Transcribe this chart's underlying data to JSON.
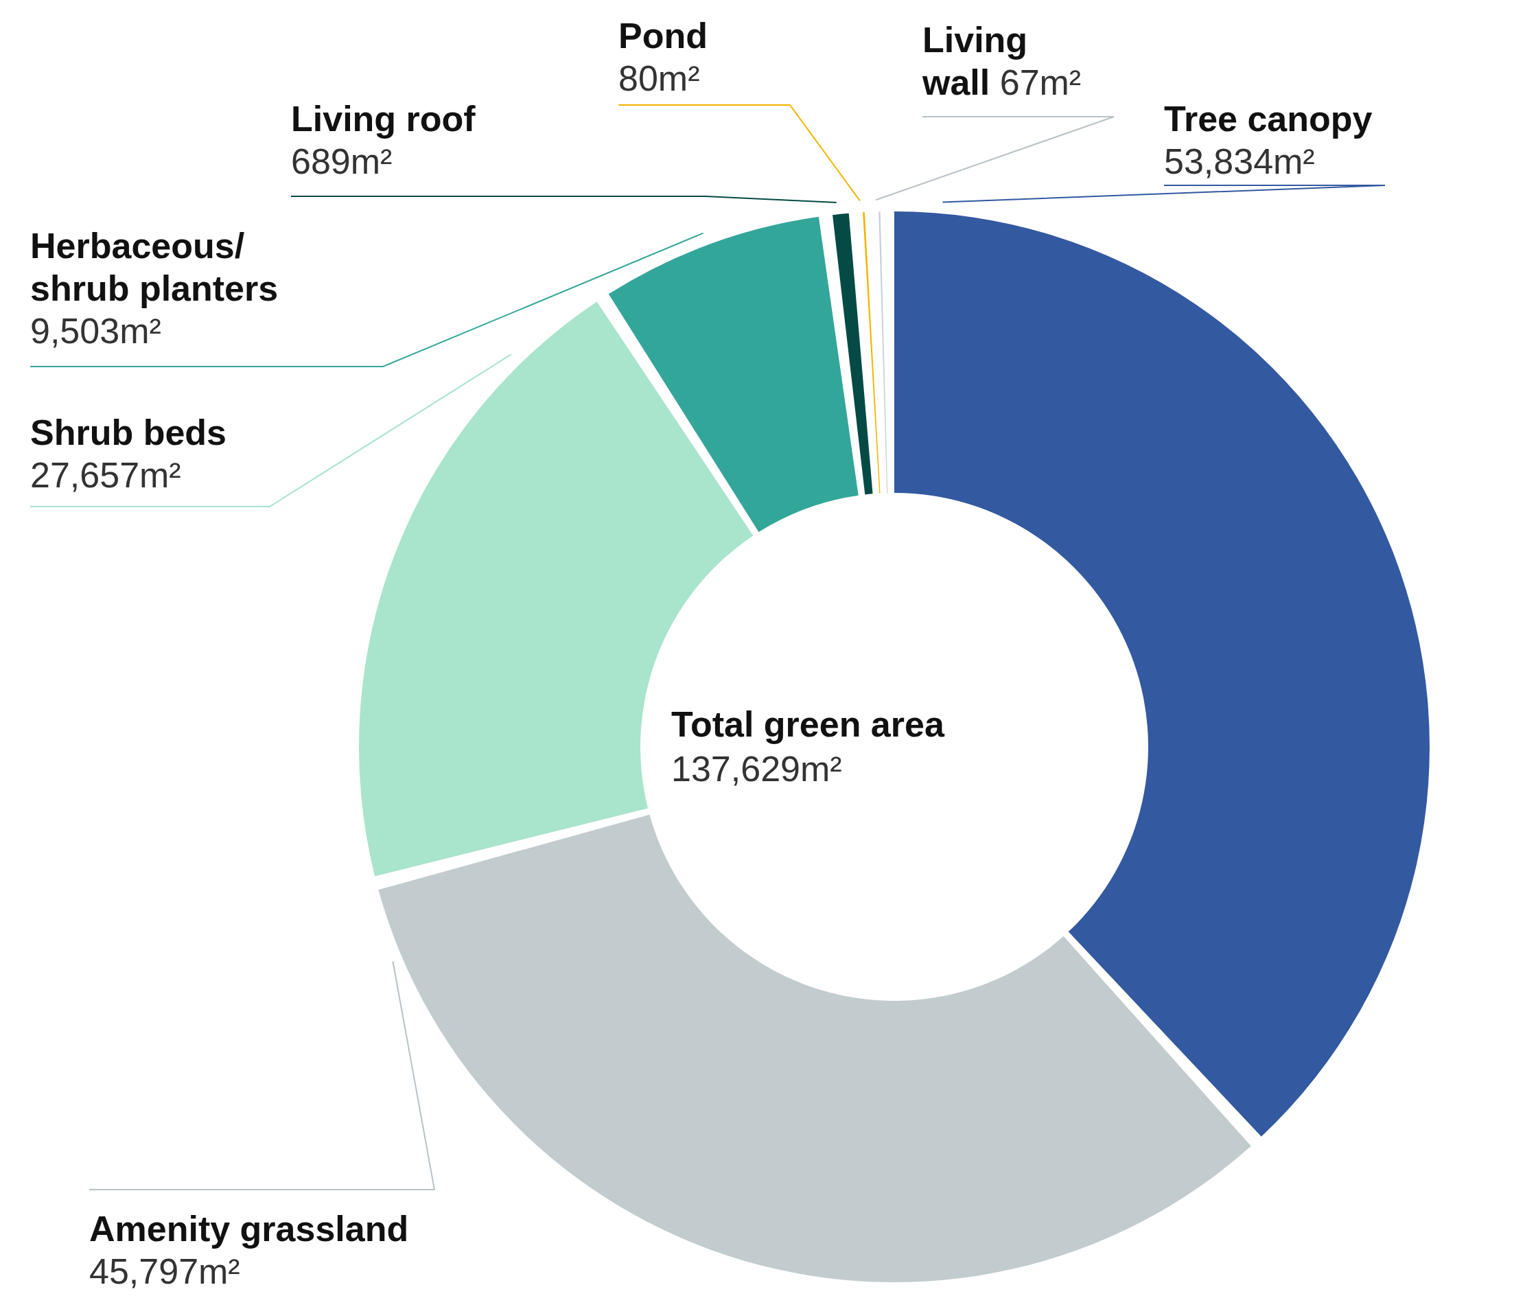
{
  "chart_data": {
    "type": "donut",
    "categories": [
      "Tree canopy",
      "Amenity grassland",
      "Shrub beds",
      "Herbaceous/shrub planters",
      "Living roof",
      "Pond",
      "Living wall"
    ],
    "values": [
      53834,
      45797,
      27657,
      9503,
      689,
      80,
      67
    ],
    "colors": [
      "#3359a0",
      "#c2cbce",
      "#a9e4cc",
      "#33a69a",
      "#064a45",
      "#f5b400",
      "#c6ced4"
    ],
    "value_labels": [
      "53,834m²",
      "45,797m²",
      "27,657m²",
      "9,503m²",
      "689m²",
      "80m²",
      "67m²"
    ],
    "annotations": [
      "Total green area",
      "137,629m²"
    ]
  }
}
